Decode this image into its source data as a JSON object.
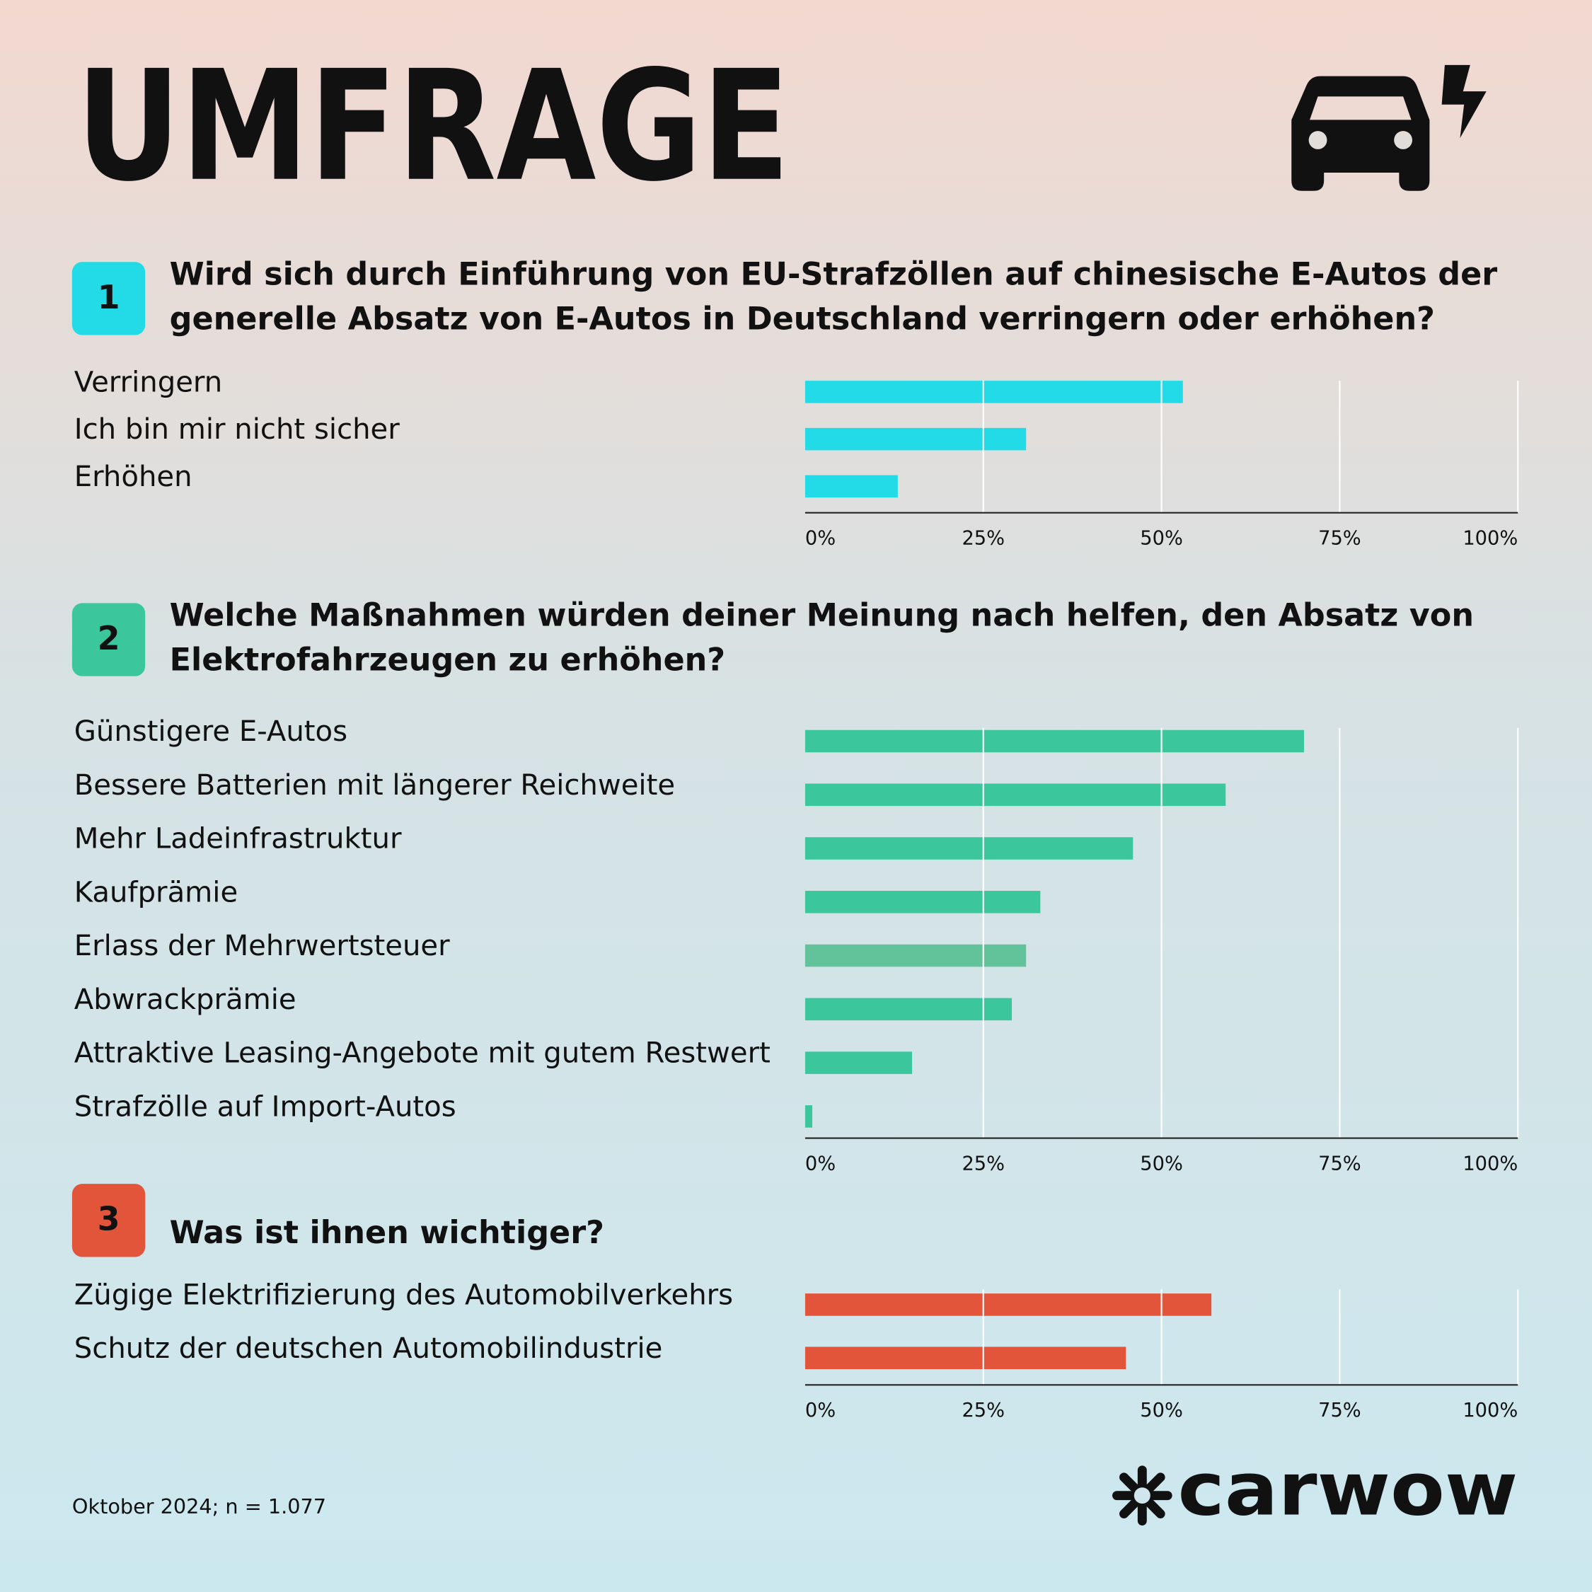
{
  "header": {
    "title": "UMFRAGE"
  },
  "chart_data": [
    {
      "type": "barh",
      "number": "1",
      "title": [
        "Wird sich durch Einführung von EU-Strafzöllen auf chinesische E-Autos der",
        "generelle Absatz von E-Autos in Deutschland verringern oder erhöhen?"
      ],
      "categories": [
        "Verringern",
        "Ich bin mir nicht sicher",
        "Erhöhen"
      ],
      "values": [
        53,
        31,
        13
      ],
      "color": "#22dbe6",
      "xlim": [
        0,
        100
      ],
      "xticks": [
        {
          "value": 0,
          "label": "0%"
        },
        {
          "value": 25,
          "label": "25%"
        },
        {
          "value": 50,
          "label": "50%"
        },
        {
          "value": 75,
          "label": "75%"
        },
        {
          "value": 100,
          "label": "100%"
        }
      ],
      "grid": true
    },
    {
      "type": "barh",
      "number": "2",
      "title": [
        "Welche Maßnahmen würden deiner Meinung nach helfen, den Absatz von",
        "Elektrofahrzeugen zu erhöhen?"
      ],
      "categories": [
        "Günstigere E-Autos",
        "Bessere Batterien mit längerer Reichweite",
        "Mehr Ladeinfrastruktur",
        "Kaufprämie",
        "Erlass der Mehrwertsteuer",
        "Abwrackprämie",
        "Attraktive Leasing-Angebote mit gutem Restwert",
        "Strafzölle auf Import-Autos"
      ],
      "values": [
        70,
        59,
        46,
        33,
        31,
        29,
        15,
        1
      ],
      "color": "#3cc69b",
      "colors": [
        "#3cc69b",
        "#3cc69b",
        "#3cc69b",
        "#3cc69b",
        "#62c29a",
        "#3cc69b",
        "#3cc69b",
        "#3cc69b"
      ],
      "xlim": [
        0,
        100
      ],
      "xticks": [
        {
          "value": 0,
          "label": "0%"
        },
        {
          "value": 25,
          "label": "25%"
        },
        {
          "value": 50,
          "label": "50%"
        },
        {
          "value": 75,
          "label": "75%"
        },
        {
          "value": 100,
          "label": "100%"
        }
      ],
      "grid": true
    },
    {
      "type": "barh",
      "number": "3",
      "title": [
        "Was ist ihnen wichtiger?"
      ],
      "categories": [
        "Zügige Elektrifizierung des Automobilverkehrs",
        "Schutz der deutschen Automobilindustrie"
      ],
      "values": [
        57,
        45
      ],
      "color": "#e2553a",
      "xlim": [
        0,
        100
      ],
      "xticks": [
        {
          "value": 0,
          "label": "0%"
        },
        {
          "value": 25,
          "label": "25%"
        },
        {
          "value": 50,
          "label": "50%"
        },
        {
          "value": 75,
          "label": "75%"
        },
        {
          "value": 100,
          "label": "100%"
        }
      ],
      "grid": true
    }
  ],
  "footer": {
    "note": "Oktober 2024; n = 1.077",
    "logo": "carwow"
  }
}
